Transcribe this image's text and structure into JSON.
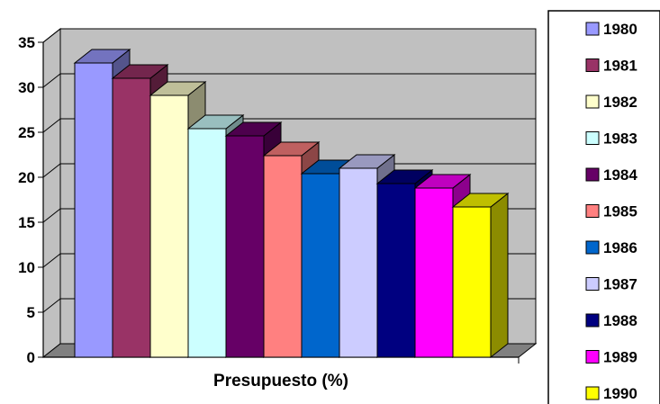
{
  "chart_data": {
    "type": "bar",
    "xlabel": "Presupuesto (%)",
    "ylabel": "",
    "ylim": [
      0,
      35
    ],
    "yticks": [
      "0",
      "5",
      "10",
      "15",
      "20",
      "25",
      "30",
      "35"
    ],
    "grid": true,
    "style": "3d",
    "legend_position": "right",
    "series": [
      {
        "name": "1980",
        "value": 32.7,
        "color": "#9999ff"
      },
      {
        "name": "1981",
        "value": 31.0,
        "color": "#993366"
      },
      {
        "name": "1982",
        "value": 29.1,
        "color": "#ffffcc"
      },
      {
        "name": "1983",
        "value": 25.4,
        "color": "#ccffff"
      },
      {
        "name": "1984",
        "value": 24.6,
        "color": "#660066"
      },
      {
        "name": "1985",
        "value": 22.4,
        "color": "#ff8080"
      },
      {
        "name": "1986",
        "value": 20.4,
        "color": "#0066cc"
      },
      {
        "name": "1987",
        "value": 21.0,
        "color": "#ccccff"
      },
      {
        "name": "1988",
        "value": 19.3,
        "color": "#000080"
      },
      {
        "name": "1989",
        "value": 18.8,
        "color": "#ff00ff"
      },
      {
        "name": "1990",
        "value": 16.7,
        "color": "#ffff00"
      }
    ],
    "colors": {
      "wall": "#c0c0c0",
      "floor": "#808080",
      "gridline": "#000000"
    }
  }
}
